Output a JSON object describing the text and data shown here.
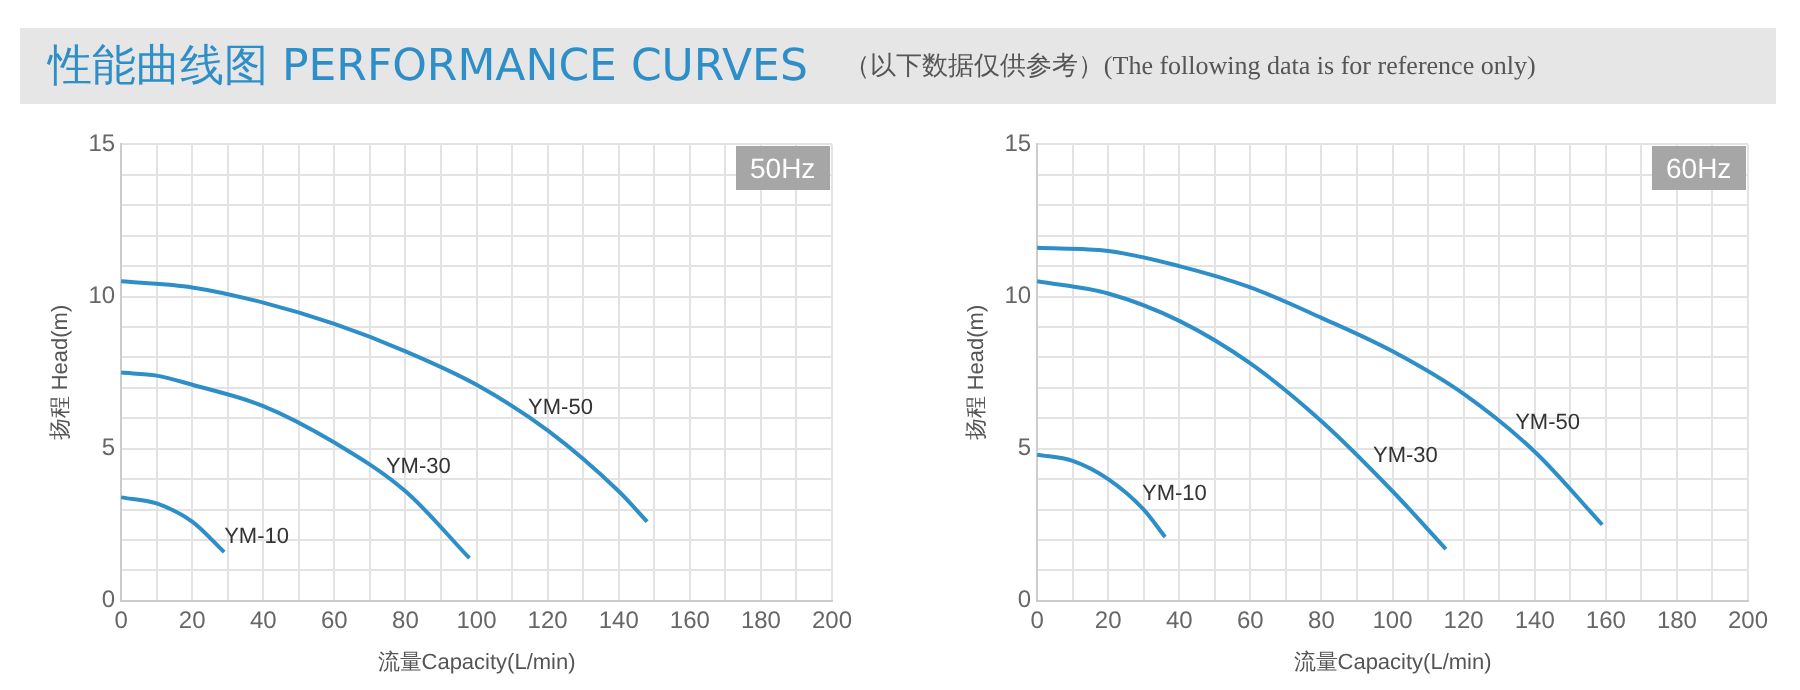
{
  "chart_data": [
    {
      "type": "other",
      "title": "性能曲线图 PERFORMANCE CURVES",
      "subtitle": "（以下数据仅供参考）(The following data is for reference only)"
    },
    {
      "type": "line",
      "xlabel": "流量Capacity(L/min)",
      "ylabel": "扬程 Head(m)",
      "annotations": [
        "50Hz"
      ],
      "xlim": [
        0,
        200
      ],
      "ylim": [
        0,
        15
      ],
      "xticks": [
        0,
        {
          "value": 10,
          "label": null
        },
        20,
        {
          "value": 30,
          "label": null
        },
        40,
        {
          "value": 50,
          "label": null
        },
        60,
        {
          "value": 70,
          "label": null
        },
        80,
        {
          "value": 90,
          "label": null
        },
        100,
        {
          "value": 110,
          "label": null
        },
        120,
        {
          "value": 130,
          "label": null
        },
        140,
        {
          "value": 150,
          "label": null
        },
        160,
        {
          "value": 170,
          "label": null
        },
        180,
        {
          "value": 190,
          "label": null
        },
        200
      ],
      "yticks": [
        0,
        {
          "value": 1,
          "label": null
        },
        {
          "value": 2,
          "label": null
        },
        {
          "value": 3,
          "label": null
        },
        {
          "value": 4,
          "label": null
        },
        5,
        {
          "value": 6,
          "label": null
        },
        {
          "value": 7,
          "label": null
        },
        {
          "value": 8,
          "label": null
        },
        {
          "value": 9,
          "label": null
        },
        10,
        {
          "value": 11,
          "label": null
        },
        {
          "value": 12,
          "label": null
        },
        {
          "value": 13,
          "label": null
        },
        {
          "value": 14,
          "label": null
        },
        15
      ],
      "grid": true,
      "legend": false,
      "marker": "none",
      "line_style": "solid",
      "series": [
        {
          "name": "YM-10",
          "color": "#2e8fc8",
          "x": [
            0,
            10,
            20,
            29
          ],
          "values": [
            3.4,
            3.2,
            2.6,
            1.6
          ]
        },
        {
          "name": "YM-30",
          "color": "#2e8fc8",
          "x": [
            0,
            10,
            20,
            40,
            60,
            80,
            98
          ],
          "values": [
            7.5,
            7.4,
            7.1,
            6.4,
            5.2,
            3.6,
            1.4
          ]
        },
        {
          "name": "YM-50",
          "color": "#2e8fc8",
          "x": [
            0,
            20,
            40,
            60,
            80,
            100,
            120,
            140,
            148
          ],
          "values": [
            10.5,
            10.3,
            9.8,
            9.1,
            8.2,
            7.1,
            5.6,
            3.6,
            2.6
          ]
        }
      ]
    },
    {
      "type": "line",
      "xlabel": "流量Capacity(L/min)",
      "ylabel": "扬程 Head(m)",
      "annotations": [
        "60Hz"
      ],
      "xlim": [
        0,
        200
      ],
      "ylim": [
        0,
        15
      ],
      "xticks": [
        0,
        {
          "value": 10,
          "label": null
        },
        20,
        {
          "value": 30,
          "label": null
        },
        40,
        {
          "value": 50,
          "label": null
        },
        60,
        {
          "value": 70,
          "label": null
        },
        80,
        {
          "value": 90,
          "label": null
        },
        100,
        {
          "value": 110,
          "label": null
        },
        120,
        {
          "value": 130,
          "label": null
        },
        140,
        {
          "value": 150,
          "label": null
        },
        160,
        {
          "value": 170,
          "label": null
        },
        180,
        {
          "value": 190,
          "label": null
        },
        200
      ],
      "yticks": [
        0,
        {
          "value": 1,
          "label": null
        },
        {
          "value": 2,
          "label": null
        },
        {
          "value": 3,
          "label": null
        },
        {
          "value": 4,
          "label": null
        },
        5,
        {
          "value": 6,
          "label": null
        },
        {
          "value": 7,
          "label": null
        },
        {
          "value": 8,
          "label": null
        },
        {
          "value": 9,
          "label": null
        },
        10,
        {
          "value": 11,
          "label": null
        },
        {
          "value": 12,
          "label": null
        },
        {
          "value": 13,
          "label": null
        },
        {
          "value": 14,
          "label": null
        },
        15
      ],
      "grid": true,
      "legend": false,
      "marker": "none",
      "line_style": "solid",
      "series": [
        {
          "name": "YM-10",
          "color": "#2e8fc8",
          "x": [
            0,
            10,
            20,
            30,
            36
          ],
          "values": [
            4.8,
            4.6,
            4.0,
            3.0,
            2.1
          ]
        },
        {
          "name": "YM-30",
          "color": "#2e8fc8",
          "x": [
            0,
            20,
            40,
            60,
            80,
            100,
            115
          ],
          "values": [
            10.5,
            10.1,
            9.2,
            7.8,
            5.9,
            3.6,
            1.7
          ]
        },
        {
          "name": "YM-50",
          "color": "#2e8fc8",
          "x": [
            0,
            20,
            40,
            60,
            80,
            100,
            120,
            140,
            159
          ],
          "values": [
            11.6,
            11.5,
            11.0,
            10.3,
            9.3,
            8.2,
            6.8,
            4.9,
            2.5
          ]
        }
      ]
    }
  ]
}
